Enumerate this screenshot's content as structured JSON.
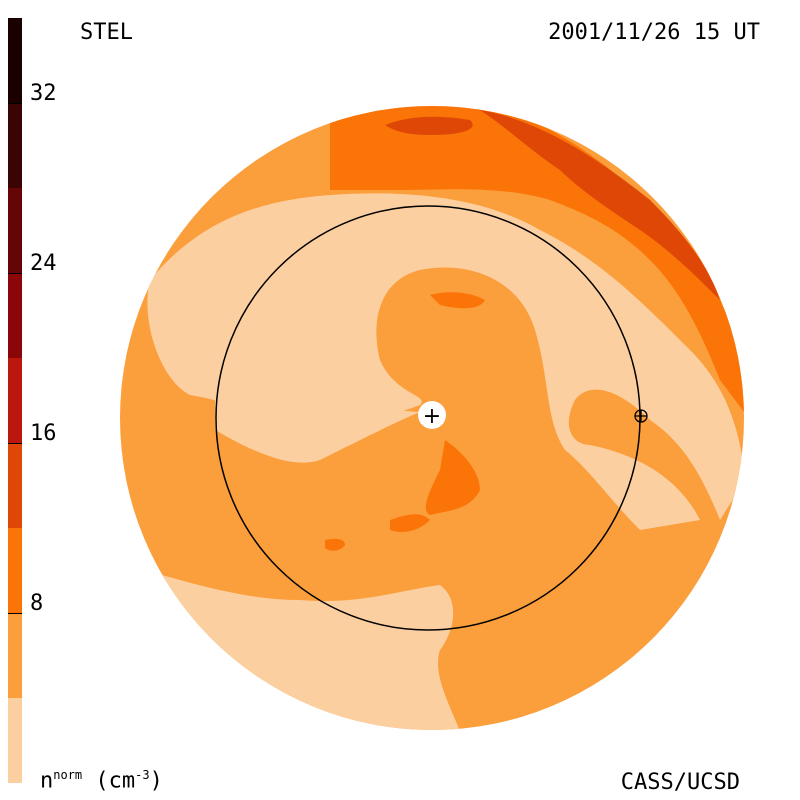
{
  "header": {
    "source": "STEL",
    "timestamp": "2001/11/26 15 UT"
  },
  "footer": {
    "credit": "CASS/UCSD",
    "unit_base": "n",
    "unit_sup": "norm",
    "unit_rest": "(cm",
    "unit_exp": "-3",
    "unit_close": ")"
  },
  "colorbar": {
    "levels": [
      {
        "from": 0,
        "to": 4,
        "color": "#fccfa0"
      },
      {
        "from": 4,
        "to": 8,
        "color": "#fb9e3c"
      },
      {
        "from": 8,
        "to": 12,
        "color": "#fb7407"
      },
      {
        "from": 12,
        "to": 16,
        "color": "#df4707"
      },
      {
        "from": 16,
        "to": 20,
        "color": "#bc170f"
      },
      {
        "from": 20,
        "to": 24,
        "color": "#8a0608"
      },
      {
        "from": 24,
        "to": 28,
        "color": "#650505"
      },
      {
        "from": 28,
        "to": 32,
        "color": "#3a0404"
      },
      {
        "from": 32,
        "to": 36,
        "color": "#1a0100"
      }
    ],
    "tick_labels": [
      "8",
      "16",
      "24",
      "32"
    ],
    "tick_values": [
      8,
      16,
      24,
      32
    ],
    "range": [
      0,
      36
    ]
  },
  "markers": {
    "sun_symbol": "+",
    "earth_symbol": "⊕"
  }
}
